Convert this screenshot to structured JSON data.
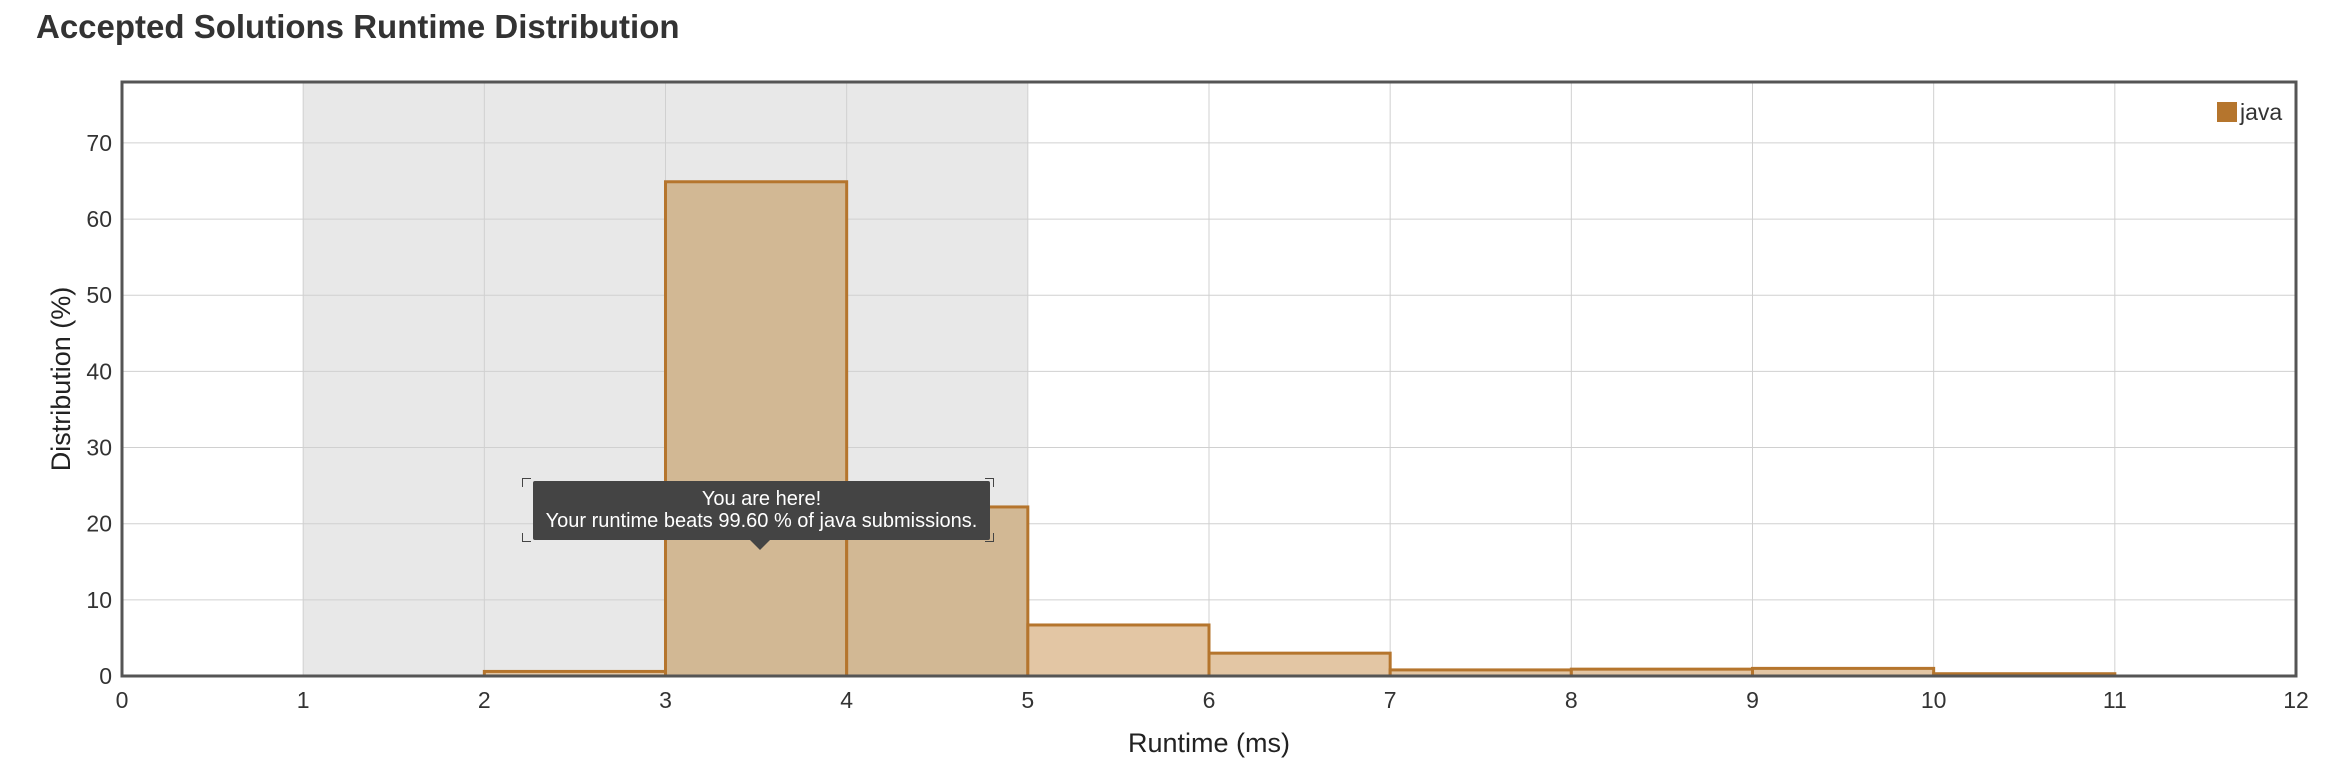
{
  "page": {
    "title": "Accepted Solutions Runtime Distribution"
  },
  "chart_data": {
    "type": "bar",
    "title": "Accepted Solutions Runtime Distribution",
    "xlabel": "Runtime (ms)",
    "ylabel": "Distribution (%)",
    "xlim": [
      0,
      12
    ],
    "ylim": [
      0,
      78
    ],
    "x_ticks": [
      "0",
      "1",
      "2",
      "3",
      "4",
      "5",
      "6",
      "7",
      "8",
      "9",
      "10",
      "11",
      "12"
    ],
    "y_ticks": [
      "0",
      "10",
      "20",
      "30",
      "40",
      "50",
      "60",
      "70"
    ],
    "grid": true,
    "legend_position": "top-right",
    "highlight_range": [
      1,
      5
    ],
    "user_bin_range": [
      3,
      5
    ],
    "bins": [
      {
        "start": 2,
        "end": 3,
        "value": 0.6
      },
      {
        "start": 3,
        "end": 4,
        "value": 64.9
      },
      {
        "start": 4,
        "end": 5,
        "value": 22.2
      },
      {
        "start": 5,
        "end": 6,
        "value": 6.7
      },
      {
        "start": 6,
        "end": 7,
        "value": 3.0
      },
      {
        "start": 7,
        "end": 8,
        "value": 0.8
      },
      {
        "start": 8,
        "end": 9,
        "value": 0.9
      },
      {
        "start": 9,
        "end": 10,
        "value": 1.0
      },
      {
        "start": 10,
        "end": 11,
        "value": 0.3
      }
    ],
    "series": [
      {
        "name": "java",
        "color": "#b5752d"
      }
    ]
  },
  "tooltip": {
    "line1": "You are here!",
    "line2": "Your runtime beats 99.60 % of java submissions."
  },
  "colors": {
    "bar_stroke": "#b5752d",
    "bar_fill_user": "#d2b894",
    "bar_fill_other": "#e3c6a4",
    "highlight_band": "#e8e8e8",
    "grid": "#d0d0d0",
    "plot_border": "#555555"
  }
}
